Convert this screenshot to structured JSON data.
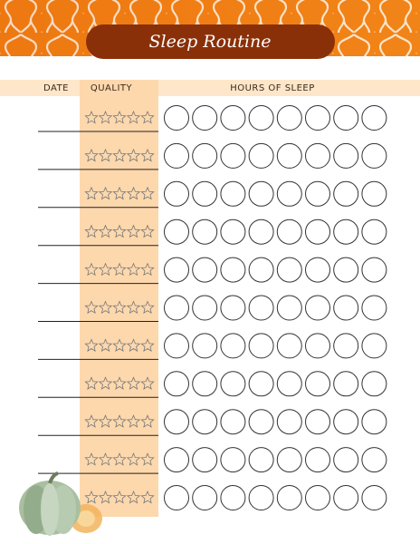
{
  "header": {
    "title": "Sleep Routine"
  },
  "table": {
    "columns": [
      "DATE",
      "QUALITY",
      "HOURS OF SLEEP"
    ]
  }
}
